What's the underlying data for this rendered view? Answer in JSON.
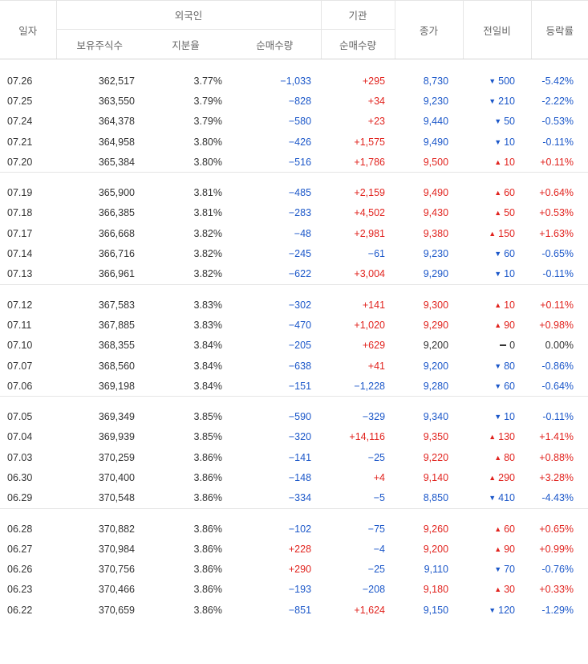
{
  "header": {
    "date": "일자",
    "foreign_group": "외국인",
    "institution_group": "기관",
    "close": "종가",
    "change": "전일비",
    "rate": "등락률",
    "holdings": "보유주식수",
    "ratio": "지분율",
    "foreign_net": "순매수량",
    "institution_net": "순매수량"
  },
  "groups": [
    [
      {
        "date": "07.26",
        "holdings": "362,517",
        "ratio": "3.77%",
        "foreign_net": "−1,033",
        "fdir": "neg",
        "inst_net": "+295",
        "idir": "pos",
        "close": "8,730",
        "cdir": "neg",
        "change": "500",
        "chdir": "down",
        "rate": "-5.42%",
        "rdir": "neg"
      },
      {
        "date": "07.25",
        "holdings": "363,550",
        "ratio": "3.79%",
        "foreign_net": "−828",
        "fdir": "neg",
        "inst_net": "+34",
        "idir": "pos",
        "close": "9,230",
        "cdir": "neg",
        "change": "210",
        "chdir": "down",
        "rate": "-2.22%",
        "rdir": "neg"
      },
      {
        "date": "07.24",
        "holdings": "364,378",
        "ratio": "3.79%",
        "foreign_net": "−580",
        "fdir": "neg",
        "inst_net": "+23",
        "idir": "pos",
        "close": "9,440",
        "cdir": "neg",
        "change": "50",
        "chdir": "down",
        "rate": "-0.53%",
        "rdir": "neg"
      },
      {
        "date": "07.21",
        "holdings": "364,958",
        "ratio": "3.80%",
        "foreign_net": "−426",
        "fdir": "neg",
        "inst_net": "+1,575",
        "idir": "pos",
        "close": "9,490",
        "cdir": "neg",
        "change": "10",
        "chdir": "down",
        "rate": "-0.11%",
        "rdir": "neg"
      },
      {
        "date": "07.20",
        "holdings": "365,384",
        "ratio": "3.80%",
        "foreign_net": "−516",
        "fdir": "neg",
        "inst_net": "+1,786",
        "idir": "pos",
        "close": "9,500",
        "cdir": "pos",
        "change": "10",
        "chdir": "up",
        "rate": "+0.11%",
        "rdir": "pos"
      }
    ],
    [
      {
        "date": "07.19",
        "holdings": "365,900",
        "ratio": "3.81%",
        "foreign_net": "−485",
        "fdir": "neg",
        "inst_net": "+2,159",
        "idir": "pos",
        "close": "9,490",
        "cdir": "pos",
        "change": "60",
        "chdir": "up",
        "rate": "+0.64%",
        "rdir": "pos"
      },
      {
        "date": "07.18",
        "holdings": "366,385",
        "ratio": "3.81%",
        "foreign_net": "−283",
        "fdir": "neg",
        "inst_net": "+4,502",
        "idir": "pos",
        "close": "9,430",
        "cdir": "pos",
        "change": "50",
        "chdir": "up",
        "rate": "+0.53%",
        "rdir": "pos"
      },
      {
        "date": "07.17",
        "holdings": "366,668",
        "ratio": "3.82%",
        "foreign_net": "−48",
        "fdir": "neg",
        "inst_net": "+2,981",
        "idir": "pos",
        "close": "9,380",
        "cdir": "pos",
        "change": "150",
        "chdir": "up",
        "rate": "+1.63%",
        "rdir": "pos"
      },
      {
        "date": "07.14",
        "holdings": "366,716",
        "ratio": "3.82%",
        "foreign_net": "−245",
        "fdir": "neg",
        "inst_net": "−61",
        "idir": "neg",
        "close": "9,230",
        "cdir": "neg",
        "change": "60",
        "chdir": "down",
        "rate": "-0.65%",
        "rdir": "neg"
      },
      {
        "date": "07.13",
        "holdings": "366,961",
        "ratio": "3.82%",
        "foreign_net": "−622",
        "fdir": "neg",
        "inst_net": "+3,004",
        "idir": "pos",
        "close": "9,290",
        "cdir": "neg",
        "change": "10",
        "chdir": "down",
        "rate": "-0.11%",
        "rdir": "neg"
      }
    ],
    [
      {
        "date": "07.12",
        "holdings": "367,583",
        "ratio": "3.83%",
        "foreign_net": "−302",
        "fdir": "neg",
        "inst_net": "+141",
        "idir": "pos",
        "close": "9,300",
        "cdir": "pos",
        "change": "10",
        "chdir": "up",
        "rate": "+0.11%",
        "rdir": "pos"
      },
      {
        "date": "07.11",
        "holdings": "367,885",
        "ratio": "3.83%",
        "foreign_net": "−470",
        "fdir": "neg",
        "inst_net": "+1,020",
        "idir": "pos",
        "close": "9,290",
        "cdir": "pos",
        "change": "90",
        "chdir": "up",
        "rate": "+0.98%",
        "rdir": "pos"
      },
      {
        "date": "07.10",
        "holdings": "368,355",
        "ratio": "3.84%",
        "foreign_net": "−205",
        "fdir": "neg",
        "inst_net": "+629",
        "idir": "pos",
        "close": "9,200",
        "cdir": "flat",
        "change": "0",
        "chdir": "flat",
        "rate": "0.00%",
        "rdir": "flat"
      },
      {
        "date": "07.07",
        "holdings": "368,560",
        "ratio": "3.84%",
        "foreign_net": "−638",
        "fdir": "neg",
        "inst_net": "+41",
        "idir": "pos",
        "close": "9,200",
        "cdir": "neg",
        "change": "80",
        "chdir": "down",
        "rate": "-0.86%",
        "rdir": "neg"
      },
      {
        "date": "07.06",
        "holdings": "369,198",
        "ratio": "3.84%",
        "foreign_net": "−151",
        "fdir": "neg",
        "inst_net": "−1,228",
        "idir": "neg",
        "close": "9,280",
        "cdir": "neg",
        "change": "60",
        "chdir": "down",
        "rate": "-0.64%",
        "rdir": "neg"
      }
    ],
    [
      {
        "date": "07.05",
        "holdings": "369,349",
        "ratio": "3.85%",
        "foreign_net": "−590",
        "fdir": "neg",
        "inst_net": "−329",
        "idir": "neg",
        "close": "9,340",
        "cdir": "neg",
        "change": "10",
        "chdir": "down",
        "rate": "-0.11%",
        "rdir": "neg"
      },
      {
        "date": "07.04",
        "holdings": "369,939",
        "ratio": "3.85%",
        "foreign_net": "−320",
        "fdir": "neg",
        "inst_net": "+14,116",
        "idir": "pos",
        "close": "9,350",
        "cdir": "pos",
        "change": "130",
        "chdir": "up",
        "rate": "+1.41%",
        "rdir": "pos"
      },
      {
        "date": "07.03",
        "holdings": "370,259",
        "ratio": "3.86%",
        "foreign_net": "−141",
        "fdir": "neg",
        "inst_net": "−25",
        "idir": "neg",
        "close": "9,220",
        "cdir": "pos",
        "change": "80",
        "chdir": "up",
        "rate": "+0.88%",
        "rdir": "pos"
      },
      {
        "date": "06.30",
        "holdings": "370,400",
        "ratio": "3.86%",
        "foreign_net": "−148",
        "fdir": "neg",
        "inst_net": "+4",
        "idir": "pos",
        "close": "9,140",
        "cdir": "pos",
        "change": "290",
        "chdir": "up",
        "rate": "+3.28%",
        "rdir": "pos"
      },
      {
        "date": "06.29",
        "holdings": "370,548",
        "ratio": "3.86%",
        "foreign_net": "−334",
        "fdir": "neg",
        "inst_net": "−5",
        "idir": "neg",
        "close": "8,850",
        "cdir": "neg",
        "change": "410",
        "chdir": "down",
        "rate": "-4.43%",
        "rdir": "neg"
      }
    ],
    [
      {
        "date": "06.28",
        "holdings": "370,882",
        "ratio": "3.86%",
        "foreign_net": "−102",
        "fdir": "neg",
        "inst_net": "−75",
        "idir": "neg",
        "close": "9,260",
        "cdir": "pos",
        "change": "60",
        "chdir": "up",
        "rate": "+0.65%",
        "rdir": "pos"
      },
      {
        "date": "06.27",
        "holdings": "370,984",
        "ratio": "3.86%",
        "foreign_net": "+228",
        "fdir": "pos",
        "inst_net": "−4",
        "idir": "neg",
        "close": "9,200",
        "cdir": "pos",
        "change": "90",
        "chdir": "up",
        "rate": "+0.99%",
        "rdir": "pos"
      },
      {
        "date": "06.26",
        "holdings": "370,756",
        "ratio": "3.86%",
        "foreign_net": "+290",
        "fdir": "pos",
        "inst_net": "−25",
        "idir": "neg",
        "close": "9,110",
        "cdir": "neg",
        "change": "70",
        "chdir": "down",
        "rate": "-0.76%",
        "rdir": "neg"
      },
      {
        "date": "06.23",
        "holdings": "370,466",
        "ratio": "3.86%",
        "foreign_net": "−193",
        "fdir": "neg",
        "inst_net": "−208",
        "idir": "neg",
        "close": "9,180",
        "cdir": "pos",
        "change": "30",
        "chdir": "up",
        "rate": "+0.33%",
        "rdir": "pos"
      },
      {
        "date": "06.22",
        "holdings": "370,659",
        "ratio": "3.86%",
        "foreign_net": "−851",
        "fdir": "neg",
        "inst_net": "+1,624",
        "idir": "pos",
        "close": "9,150",
        "cdir": "neg",
        "change": "120",
        "chdir": "down",
        "rate": "-1.29%",
        "rdir": "neg"
      }
    ]
  ],
  "colors": {
    "up": "#e1231e",
    "down": "#1b57c9",
    "border": "#e5e5e5"
  },
  "icons": {
    "up": "triangle-up-icon",
    "down": "triangle-down-icon",
    "flat": "dash-icon"
  }
}
